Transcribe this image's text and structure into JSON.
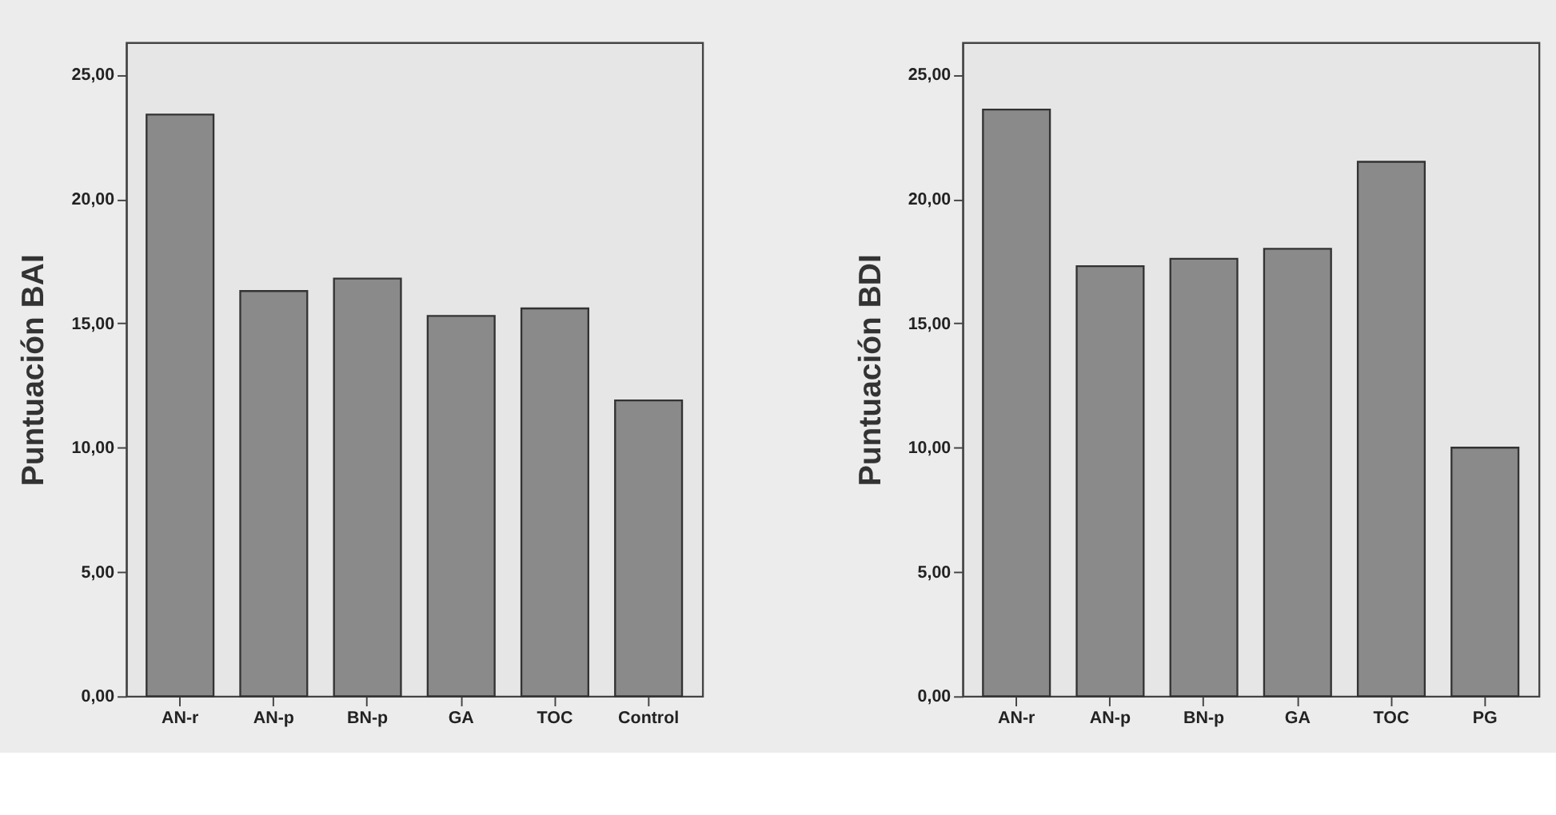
{
  "chart_data": [
    {
      "type": "bar",
      "ylabel": "Puntuación BAI",
      "categories": [
        "AN-r",
        "AN-p",
        "BN-p",
        "GA",
        "TOC",
        "Control"
      ],
      "values": [
        23.4,
        16.3,
        16.8,
        15.3,
        15.6,
        11.9
      ],
      "color": "#8a8a8a",
      "ylim": [
        0,
        26.3
      ],
      "yticks": [
        {
          "value": 0,
          "label": "0,00"
        },
        {
          "value": 5,
          "label": "5,00"
        },
        {
          "value": 10,
          "label": "10,00"
        },
        {
          "value": 15,
          "label": "15,00"
        },
        {
          "value": 20,
          "label": "20,00"
        },
        {
          "value": 25,
          "label": "25,00"
        }
      ],
      "grid": false
    },
    {
      "type": "bar",
      "ylabel": "Puntuación BDI",
      "categories": [
        "AN-r",
        "AN-p",
        "BN-p",
        "GA",
        "TOC",
        "PG"
      ],
      "values": [
        23.6,
        17.3,
        17.6,
        18.0,
        21.5,
        10.0
      ],
      "color": "#8a8a8a",
      "ylim": [
        0,
        26.3
      ],
      "yticks": [
        {
          "value": 0,
          "label": "0,00"
        },
        {
          "value": 5,
          "label": "5,00"
        },
        {
          "value": 10,
          "label": "10,00"
        },
        {
          "value": 15,
          "label": "15,00"
        },
        {
          "value": 20,
          "label": "20,00"
        },
        {
          "value": 25,
          "label": "25,00"
        }
      ],
      "grid": false
    }
  ]
}
